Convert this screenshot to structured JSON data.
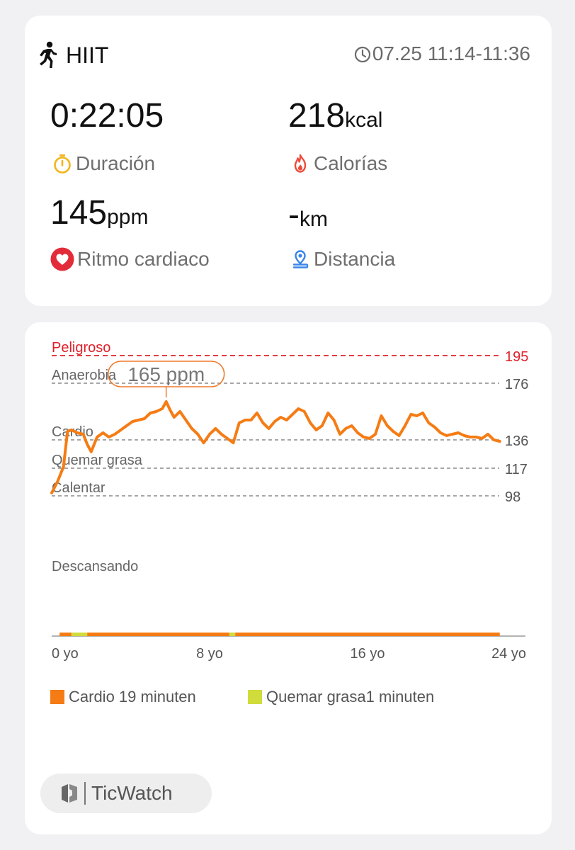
{
  "workout": {
    "title": "HIIT",
    "time_range": "07.25 11:14-11:36",
    "icon": "running-person-icon"
  },
  "metrics": {
    "duration": {
      "value": "0:22:05",
      "unit": "",
      "label": "Duración",
      "icon": "stopwatch-icon"
    },
    "calories": {
      "value": "218",
      "unit": "kcal",
      "label": "Calorías",
      "icon": "flame-icon"
    },
    "heart_rate": {
      "value": "145",
      "unit": "ppm",
      "label": "Ritmo cardiaco",
      "icon": "heart-icon"
    },
    "distance": {
      "value": "-",
      "unit": "km",
      "label": "Distancia",
      "icon": "location-pin-icon"
    }
  },
  "colors": {
    "accent_orange": "#f57c14",
    "danger_red": "#e0202a",
    "fat_burn_green": "#cfdc3c",
    "stopwatch_yellow": "#f3b51b",
    "pin_blue": "#3a86e8"
  },
  "chart_data": {
    "type": "line",
    "xlabel": "",
    "ylabel": "",
    "x_tick_labels": [
      "0 yo",
      "8 yo",
      "16 yo",
      "24 yo"
    ],
    "xlim": [
      0,
      24
    ],
    "zones": [
      {
        "name": "Peligroso",
        "threshold": 195,
        "color": "#e0202a",
        "dashed": true
      },
      {
        "name": "Anaerobia",
        "threshold": 176
      },
      {
        "name": "Cardio",
        "threshold": 136
      },
      {
        "name": "Quemar grasa",
        "threshold": 117
      },
      {
        "name": "Calentar",
        "threshold": 98
      }
    ],
    "rest_label": "Descansando",
    "peak_annotation": {
      "text": "165 ppm",
      "x": 5.8,
      "y": 165
    },
    "series": [
      {
        "color": "#f57c14",
        "x": [
          0,
          0.3,
          0.6,
          0.8,
          1.0,
          1.3,
          1.6,
          1.8,
          2.0,
          2.3,
          2.6,
          2.9,
          3.2,
          3.5,
          3.8,
          4.1,
          4.4,
          4.7,
          5.0,
          5.3,
          5.6,
          5.8,
          6.0,
          6.2,
          6.5,
          6.8,
          7.1,
          7.4,
          7.7,
          8.0,
          8.3,
          8.6,
          8.9,
          9.2,
          9.5,
          9.8,
          10.1,
          10.4,
          10.7,
          11.0,
          11.3,
          11.6,
          11.9,
          12.2,
          12.5,
          12.8,
          13.1,
          13.4,
          13.7,
          14.0,
          14.3,
          14.6,
          14.9,
          15.2,
          15.5,
          15.8,
          16.1,
          16.4,
          16.7,
          17.0,
          17.3,
          17.6,
          17.9,
          18.2,
          18.5,
          18.8,
          19.1,
          19.4,
          19.7,
          20.0,
          20.3,
          20.6,
          20.9,
          21.2,
          21.5,
          21.8,
          22.1,
          22.4,
          22.7
        ],
        "y": [
          100,
          108,
          118,
          142,
          143,
          141,
          140,
          133,
          128,
          138,
          141,
          138,
          140,
          143,
          146,
          149,
          150,
          151,
          155,
          156,
          158,
          163,
          157,
          152,
          156,
          150,
          144,
          140,
          134,
          140,
          144,
          140,
          137,
          134,
          148,
          150,
          150,
          155,
          148,
          144,
          149,
          152,
          150,
          154,
          158,
          156,
          148,
          143,
          146,
          155,
          150,
          140,
          144,
          146,
          141,
          138,
          137,
          140,
          153,
          146,
          142,
          139,
          146,
          154,
          153,
          155,
          148,
          145,
          141,
          139,
          140,
          141,
          139,
          138,
          138,
          137,
          140,
          136,
          135
        ]
      }
    ],
    "zone_bar": [
      {
        "zone": "Cardio",
        "color": "#f57c14"
      },
      {
        "zone": "Quemar grasa",
        "color": "#cfdc3c"
      }
    ],
    "legend": [
      {
        "label": "Cardio 19 minuten",
        "color": "#f57c14"
      },
      {
        "label": "Quemar grasa1 minuten",
        "color": "#cfdc3c"
      }
    ]
  },
  "brand": {
    "name": "TicWatch"
  }
}
